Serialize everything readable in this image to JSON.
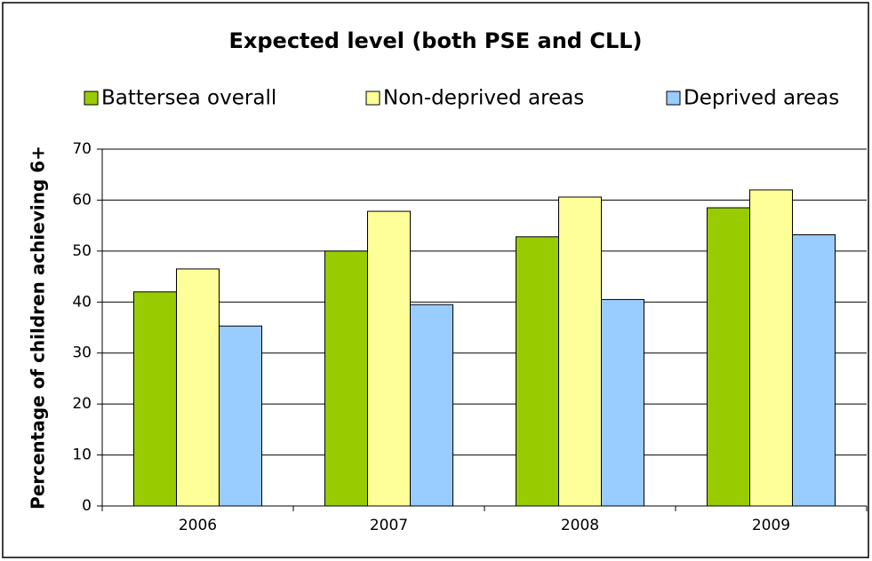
{
  "chart_data": {
    "type": "bar",
    "title": "Expected level (both PSE and CLL)",
    "y_label": "Percentage of children achieving 6+",
    "categories": [
      "2006",
      "2007",
      "2008",
      "2009"
    ],
    "series": [
      {
        "name": "Battersea overall",
        "color": "#99cc00",
        "values": [
          42,
          50,
          52.8,
          58.5
        ]
      },
      {
        "name": "Non-deprived areas",
        "color": "#ffff99",
        "values": [
          46.5,
          57.8,
          60.6,
          62
        ]
      },
      {
        "name": "Deprived areas",
        "color": "#99ccff",
        "values": [
          35.3,
          39.5,
          40.5,
          53.2
        ]
      }
    ],
    "ylim": [
      0,
      70
    ],
    "yticks": [
      0,
      10,
      20,
      30,
      40,
      50,
      60,
      70
    ],
    "grid": true
  }
}
